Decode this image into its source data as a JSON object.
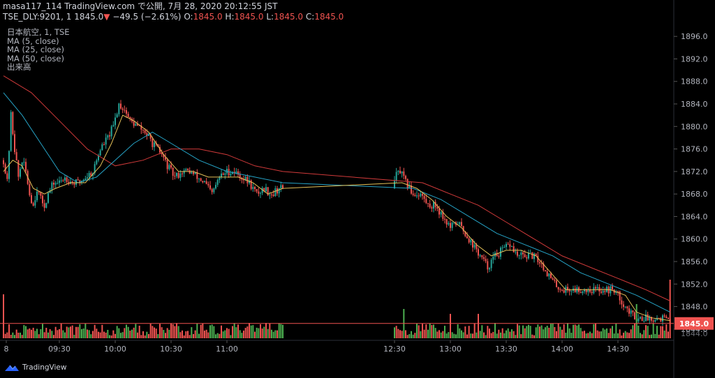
{
  "header": {
    "line1": "masa117_114 TradingView.com で公開, 7月 28, 2020 20:12:55 JST",
    "symbol": "TSE_DLY:9201, 1",
    "last": "1845.0",
    "arrow": "▼",
    "change": "−49.5 (−2.61%)",
    "o_label": "O:",
    "o": "1845.0",
    "h_label": "H:",
    "h": "1845.0",
    "l_label": "L:",
    "l": "1845.0",
    "c_label": "C:",
    "c": "1845.0"
  },
  "legend": {
    "name": "日本航空, 1, TSE",
    "ma5": "MA (5, close)",
    "ma25": "MA (25, close)",
    "ma50": "MA (50, close)",
    "volume": "出来高"
  },
  "footer": {
    "brand": "TradingView"
  },
  "colors": {
    "up": "#26a69a",
    "down": "#ef5350",
    "vol_up": "#4caf50",
    "vol_down": "#ef5350",
    "ma5": "#e5c158",
    "ma25": "#26a3c6",
    "ma50": "#d03a3a",
    "grid": "#1c1c1c",
    "axis": "#b2b5be"
  },
  "chart_data": {
    "type": "candlestick",
    "y_axis": {
      "ticks": [
        1896.0,
        1892.0,
        1888.0,
        1884.0,
        1880.0,
        1876.0,
        1872.0,
        1868.0,
        1864.0,
        1860.0,
        1856.0,
        1852.0,
        1848.0,
        1844.0
      ],
      "last_price": "1845.0",
      "hidden_partial_tick": "1844.0",
      "range": [
        1842,
        1898.5
      ]
    },
    "x_axis": {
      "ticks": [
        "8",
        "09:30",
        "10:00",
        "10:30",
        "11:00",
        "12:30",
        "13:00",
        "13:30",
        "14:00",
        "14:30"
      ],
      "range": [
        "09:00",
        "15:00"
      ]
    },
    "price_path": [
      [
        "09:00",
        1874
      ],
      [
        "09:02",
        1870
      ],
      [
        "09:04",
        1882
      ],
      [
        "09:06",
        1876
      ],
      [
        "09:08",
        1871
      ],
      [
        "09:10",
        1874
      ],
      [
        "09:12",
        1872
      ],
      [
        "09:14",
        1868
      ],
      [
        "09:16",
        1866
      ],
      [
        "09:18",
        1869
      ],
      [
        "09:20",
        1867
      ],
      [
        "09:22",
        1866
      ],
      [
        "09:24",
        1868
      ],
      [
        "09:27",
        1870
      ],
      [
        "09:30",
        1870
      ],
      [
        "09:33",
        1871
      ],
      [
        "09:37",
        1870
      ],
      [
        "09:40",
        1870
      ],
      [
        "09:44",
        1871
      ],
      [
        "09:48",
        1872
      ],
      [
        "09:52",
        1876
      ],
      [
        "09:56",
        1878
      ],
      [
        "09:59",
        1880
      ],
      [
        "10:02",
        1884
      ],
      [
        "10:05",
        1883
      ],
      [
        "10:08",
        1881
      ],
      [
        "10:12",
        1880
      ],
      [
        "10:16",
        1879
      ],
      [
        "10:20",
        1877
      ],
      [
        "10:25",
        1875
      ],
      [
        "10:28",
        1873
      ],
      [
        "10:32",
        1871
      ],
      [
        "10:36",
        1872
      ],
      [
        "10:40",
        1872
      ],
      [
        "10:44",
        1871
      ],
      [
        "10:48",
        1870
      ],
      [
        "10:52",
        1868
      ],
      [
        "10:56",
        1871
      ],
      [
        "11:00",
        1872
      ],
      [
        "11:04",
        1872
      ],
      [
        "11:08",
        1871
      ],
      [
        "11:12",
        1870
      ],
      [
        "11:16",
        1868
      ],
      [
        "11:20",
        1869
      ],
      [
        "11:24",
        1868
      ],
      [
        "11:28",
        1869
      ],
      [
        "11:30",
        1869
      ],
      [
        "12:30",
        1871
      ],
      [
        "12:33",
        1872
      ],
      [
        "12:36",
        1870
      ],
      [
        "12:40",
        1868
      ],
      [
        "12:44",
        1868
      ],
      [
        "12:48",
        1866
      ],
      [
        "12:52",
        1866
      ],
      [
        "12:56",
        1864
      ],
      [
        "13:00",
        1862
      ],
      [
        "13:04",
        1863
      ],
      [
        "13:08",
        1861
      ],
      [
        "13:12",
        1859
      ],
      [
        "13:16",
        1857
      ],
      [
        "13:20",
        1855
      ],
      [
        "13:24",
        1857
      ],
      [
        "13:28",
        1858
      ],
      [
        "13:32",
        1859
      ],
      [
        "13:36",
        1857
      ],
      [
        "13:40",
        1857
      ],
      [
        "13:44",
        1857
      ],
      [
        "13:48",
        1856
      ],
      [
        "13:52",
        1854
      ],
      [
        "13:56",
        1852
      ],
      [
        "14:00",
        1851
      ],
      [
        "14:04",
        1851
      ],
      [
        "14:08",
        1851
      ],
      [
        "14:12",
        1851
      ],
      [
        "14:16",
        1851
      ],
      [
        "14:20",
        1851
      ],
      [
        "14:24",
        1851
      ],
      [
        "14:28",
        1851
      ],
      [
        "14:32",
        1849
      ],
      [
        "14:36",
        1847
      ],
      [
        "14:40",
        1846
      ],
      [
        "14:44",
        1846
      ],
      [
        "14:48",
        1846
      ],
      [
        "14:52",
        1846
      ],
      [
        "14:55",
        1846
      ],
      [
        "14:58",
        1845
      ]
    ],
    "ma5_path": [
      [
        "09:00",
        1872
      ],
      [
        "09:05",
        1874
      ],
      [
        "09:10",
        1873
      ],
      [
        "09:16",
        1869
      ],
      [
        "09:22",
        1868
      ],
      [
        "09:28",
        1869
      ],
      [
        "09:36",
        1870
      ],
      [
        "09:44",
        1870
      ],
      [
        "09:52",
        1873
      ],
      [
        "09:58",
        1877
      ],
      [
        "10:04",
        1882
      ],
      [
        "10:10",
        1881
      ],
      [
        "10:18",
        1879
      ],
      [
        "10:26",
        1875
      ],
      [
        "10:34",
        1872
      ],
      [
        "10:42",
        1872
      ],
      [
        "10:50",
        1871
      ],
      [
        "10:58",
        1871
      ],
      [
        "11:06",
        1871
      ],
      [
        "11:14",
        1870
      ],
      [
        "11:22",
        1868
      ],
      [
        "11:30",
        1869
      ],
      [
        "12:34",
        1870
      ],
      [
        "12:42",
        1869
      ],
      [
        "12:50",
        1867
      ],
      [
        "12:58",
        1864
      ],
      [
        "13:06",
        1862
      ],
      [
        "13:14",
        1859
      ],
      [
        "13:22",
        1857
      ],
      [
        "13:30",
        1858
      ],
      [
        "13:38",
        1858
      ],
      [
        "13:46",
        1857
      ],
      [
        "13:54",
        1854
      ],
      [
        "14:02",
        1851
      ],
      [
        "14:10",
        1851
      ],
      [
        "14:18",
        1851
      ],
      [
        "14:26",
        1851
      ],
      [
        "14:34",
        1850
      ],
      [
        "14:40",
        1847
      ],
      [
        "14:48",
        1846
      ],
      [
        "14:58",
        1845.5
      ]
    ],
    "ma25_path": [
      [
        "09:00",
        1886
      ],
      [
        "09:10",
        1882
      ],
      [
        "09:20",
        1877
      ],
      [
        "09:30",
        1872
      ],
      [
        "09:40",
        1870
      ],
      [
        "09:50",
        1871
      ],
      [
        "10:00",
        1874
      ],
      [
        "10:10",
        1877
      ],
      [
        "10:20",
        1879
      ],
      [
        "10:30",
        1877
      ],
      [
        "10:45",
        1874
      ],
      [
        "11:00",
        1872
      ],
      [
        "11:15",
        1871
      ],
      [
        "11:30",
        1870
      ],
      [
        "12:40",
        1869
      ],
      [
        "12:55",
        1867
      ],
      [
        "13:10",
        1864
      ],
      [
        "13:25",
        1861
      ],
      [
        "13:40",
        1859
      ],
      [
        "13:55",
        1857
      ],
      [
        "14:10",
        1854
      ],
      [
        "14:25",
        1852
      ],
      [
        "14:40",
        1850
      ],
      [
        "14:58",
        1847
      ]
    ],
    "ma50_path": [
      [
        "09:00",
        1889
      ],
      [
        "09:15",
        1886
      ],
      [
        "09:30",
        1881
      ],
      [
        "09:45",
        1876
      ],
      [
        "10:00",
        1873
      ],
      [
        "10:15",
        1874
      ],
      [
        "10:30",
        1876
      ],
      [
        "10:45",
        1876
      ],
      [
        "11:00",
        1875
      ],
      [
        "11:15",
        1873
      ],
      [
        "11:30",
        1872
      ],
      [
        "12:45",
        1870
      ],
      [
        "13:00",
        1868
      ],
      [
        "13:15",
        1866
      ],
      [
        "13:30",
        1863
      ],
      [
        "13:45",
        1860
      ],
      [
        "14:00",
        1857
      ],
      [
        "14:15",
        1855
      ],
      [
        "14:30",
        1853
      ],
      [
        "14:45",
        1851
      ],
      [
        "14:58",
        1849
      ]
    ],
    "volume_spikes": [
      [
        "09:00",
        9
      ],
      [
        "12:35",
        6
      ],
      [
        "13:00",
        5
      ],
      [
        "13:15",
        5
      ],
      [
        "14:40",
        7
      ],
      [
        "14:58",
        12
      ]
    ]
  }
}
